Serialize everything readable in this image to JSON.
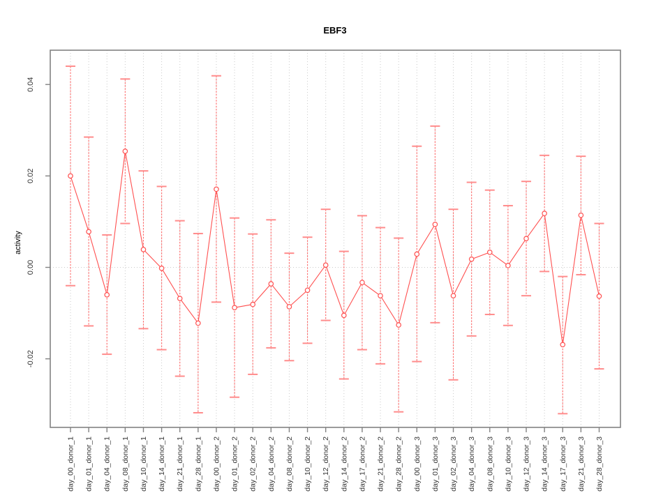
{
  "chart_data": {
    "type": "line",
    "title": "EBF3",
    "xlabel": "",
    "ylabel": "activity",
    "legend": "none",
    "grid": "dotted vertical gridline at each category; dotted horizontal line at y=0",
    "point_marker": "open-circle",
    "error_bars": true,
    "ylim": [
      -0.035,
      0.0475
    ],
    "yticks": [
      -0.02,
      0.0,
      0.02,
      0.04
    ],
    "ytick_labels": [
      "-0.02",
      "0.00",
      "0.02",
      "0.04"
    ],
    "categories": [
      "day_00_donor_1",
      "day_01_donor_1",
      "day_04_donor_1",
      "day_08_donor_1",
      "day_10_donor_1",
      "day_14_donor_1",
      "day_21_donor_1",
      "day_28_donor_1",
      "day_00_donor_2",
      "day_01_donor_2",
      "day_02_donor_2",
      "day_04_donor_2",
      "day_08_donor_2",
      "day_10_donor_2",
      "day_12_donor_2",
      "day_14_donor_2",
      "day_17_donor_2",
      "day_21_donor_2",
      "day_28_donor_2",
      "day_00_donor_3",
      "day_01_donor_3",
      "day_02_donor_3",
      "day_04_donor_3",
      "day_08_donor_3",
      "day_10_donor_3",
      "day_12_donor_3",
      "day_14_donor_3",
      "day_17_donor_3",
      "day_21_donor_3",
      "day_28_donor_3"
    ],
    "series": [
      {
        "name": "activity",
        "values": [
          0.02,
          0.0078,
          -0.006,
          0.0254,
          0.0039,
          -0.0002,
          -0.0068,
          -0.0122,
          0.0171,
          -0.0088,
          -0.0081,
          -0.0036,
          -0.0086,
          -0.005,
          0.0005,
          -0.0105,
          -0.0033,
          -0.0062,
          -0.0126,
          0.0029,
          0.0094,
          -0.0062,
          0.0018,
          0.0033,
          0.0004,
          0.0063,
          0.0118,
          -0.0169,
          0.0114,
          -0.0063
        ],
        "upper": [
          0.044,
          0.0285,
          0.0071,
          0.0412,
          0.0211,
          0.0177,
          0.0102,
          0.0074,
          0.0419,
          0.0108,
          0.0073,
          0.0104,
          0.0031,
          0.0066,
          0.0127,
          0.0035,
          0.0113,
          0.0087,
          0.0064,
          0.0265,
          0.0309,
          0.0127,
          0.0186,
          0.0169,
          0.0135,
          0.0188,
          0.0245,
          -0.002,
          0.0243,
          0.0096
        ],
        "lower": [
          -0.004,
          -0.0128,
          -0.019,
          0.0096,
          -0.0134,
          -0.018,
          -0.0238,
          -0.0318,
          -0.0076,
          -0.0284,
          -0.0234,
          -0.0176,
          -0.0204,
          -0.0166,
          -0.0116,
          -0.0244,
          -0.018,
          -0.0211,
          -0.0316,
          -0.0206,
          -0.0121,
          -0.0246,
          -0.015,
          -0.0103,
          -0.0127,
          -0.0062,
          -0.0009,
          -0.032,
          -0.0016,
          -0.0222
        ]
      }
    ],
    "colors": {
      "line": "#ff5050",
      "marker": "#ff5050",
      "error_bar": "#ff6e6e",
      "error_cap": "#ff8c8c",
      "gridline": "#c9c9c9",
      "axis_border": "#828282",
      "tick": "#828282",
      "tick_text": "#333333",
      "zero_line": "#c9c9c9"
    }
  }
}
